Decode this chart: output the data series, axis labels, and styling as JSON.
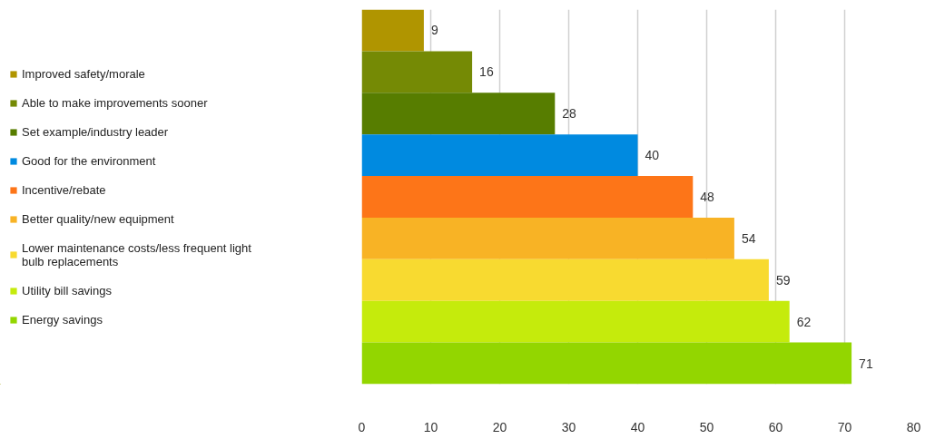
{
  "chart_data": {
    "type": "bar",
    "orientation": "horizontal",
    "categories": [
      null,
      null,
      null,
      null,
      null,
      null,
      null,
      null,
      null
    ],
    "series": [
      {
        "name": "Improved safety/morale",
        "color": "#b09500",
        "values": [
          9,
          null,
          null,
          null,
          null,
          null,
          null,
          null,
          null
        ]
      },
      {
        "name": "Able to make improvements sooner",
        "color": "#758a05",
        "values": [
          null,
          16,
          null,
          null,
          null,
          null,
          null,
          null,
          null
        ]
      },
      {
        "name": "Set example/industry leader",
        "color": "#577d00",
        "values": [
          null,
          null,
          28,
          null,
          null,
          null,
          null,
          null,
          null
        ]
      },
      {
        "name": "Good for the environment",
        "color": "#008ae0",
        "values": [
          null,
          null,
          null,
          40,
          null,
          null,
          null,
          null,
          null
        ]
      },
      {
        "name": "Incentive/rebate",
        "color": "#fd7518",
        "values": [
          null,
          null,
          null,
          null,
          48,
          null,
          null,
          null,
          null
        ]
      },
      {
        "name": "Better quality/new equipment",
        "color": "#f8b325",
        "values": [
          null,
          null,
          null,
          null,
          null,
          54,
          null,
          null,
          null
        ]
      },
      {
        "name": "Lower maintenance costs/less frequent light bulb replacements",
        "color": "#f8da30",
        "values": [
          null,
          null,
          null,
          null,
          null,
          null,
          59,
          null,
          null
        ]
      },
      {
        "name": "Utility bill savings",
        "color": "#c5eb0c",
        "values": [
          null,
          null,
          null,
          null,
          null,
          null,
          null,
          62,
          null
        ]
      },
      {
        "name": "Energy savings",
        "color": "#93d600",
        "values": [
          null,
          null,
          null,
          null,
          null,
          null,
          null,
          null,
          71
        ]
      }
    ],
    "xlim": [
      0,
      80
    ],
    "xticks": [
      0,
      10,
      20,
      30,
      40,
      50,
      60,
      70,
      80
    ],
    "grid": "x",
    "legend": "left",
    "data_labels": true
  }
}
